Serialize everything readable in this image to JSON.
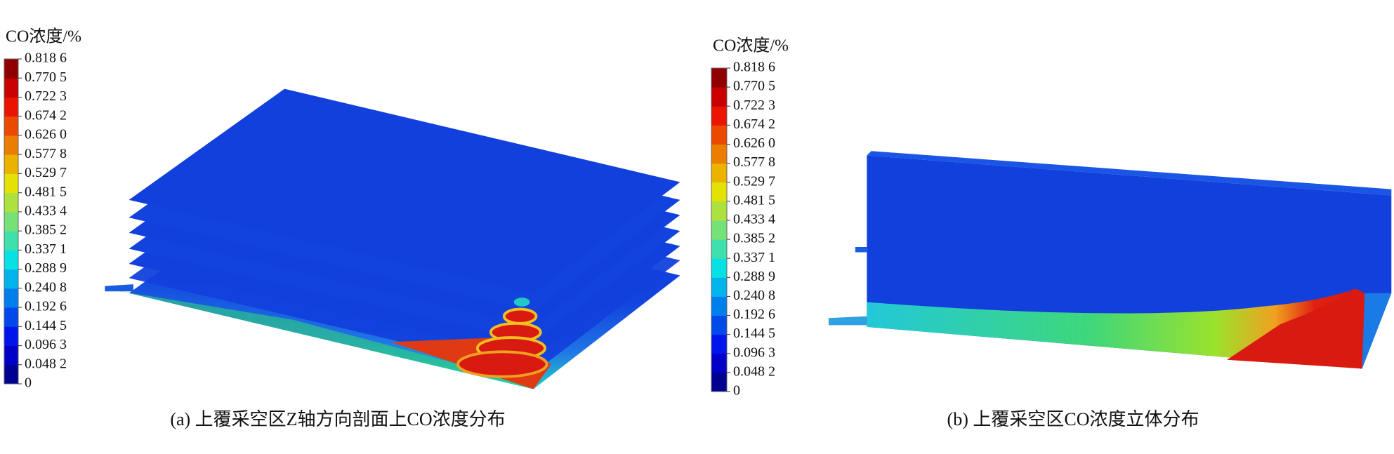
{
  "panels": [
    {
      "caption": "(a) 上覆采空区Z轴方向剖面上CO浓度分布",
      "colorbar": {
        "title": "CO浓度/%",
        "ticks": [
          0,
          {
            "value": 0.0482,
            "label": "0.048 2"
          },
          {
            "value": 0.0963,
            "label": "0.096 3"
          },
          {
            "value": 0.1445,
            "label": "0.144 5"
          },
          {
            "value": 0.1926,
            "label": "0.192 6"
          },
          {
            "value": 0.2408,
            "label": "0.240 8"
          },
          {
            "value": 0.2889,
            "label": "0.288 9"
          },
          {
            "value": 0.3371,
            "label": "0.337 1"
          },
          {
            "value": 0.3852,
            "label": "0.385 2"
          },
          {
            "value": 0.4334,
            "label": "0.433 4"
          },
          {
            "value": 0.4815,
            "label": "0.481 5"
          },
          {
            "value": 0.5297,
            "label": "0.529 7"
          },
          {
            "value": 0.5778,
            "label": "0.577 8"
          },
          {
            "value": 0.626,
            "label": "0.626 0"
          },
          {
            "value": 0.6742,
            "label": "0.674 2"
          },
          {
            "value": 0.7223,
            "label": "0.722 3"
          },
          {
            "value": 0.7705,
            "label": "0.770 5"
          },
          {
            "value": 0.8186,
            "label": "0.818 6"
          }
        ]
      }
    },
    {
      "caption": "(b) 上覆采空区CO浓度立体分布",
      "colorbar": {
        "title": "CO浓度/%",
        "ticks": [
          0,
          {
            "value": 0.0482,
            "label": "0.048 2"
          },
          {
            "value": 0.0963,
            "label": "0.096 3"
          },
          {
            "value": 0.1445,
            "label": "0.144 5"
          },
          {
            "value": 0.1926,
            "label": "0.192 6"
          },
          {
            "value": 0.2408,
            "label": "0.240 8"
          },
          {
            "value": 0.2889,
            "label": "0.288 9"
          },
          {
            "value": 0.3371,
            "label": "0.337 1"
          },
          {
            "value": 0.3852,
            "label": "0.385 2"
          },
          {
            "value": 0.4334,
            "label": "0.433 4"
          },
          {
            "value": 0.4815,
            "label": "0.481 5"
          },
          {
            "value": 0.5297,
            "label": "0.529 7"
          },
          {
            "value": 0.5778,
            "label": "0.577 8"
          },
          {
            "value": 0.626,
            "label": "0.626 0"
          },
          {
            "value": 0.6742,
            "label": "0.674 2"
          },
          {
            "value": 0.7223,
            "label": "0.722 3"
          },
          {
            "value": 0.7705,
            "label": "0.770 5"
          },
          {
            "value": 0.8186,
            "label": "0.818 6"
          }
        ]
      }
    }
  ]
}
